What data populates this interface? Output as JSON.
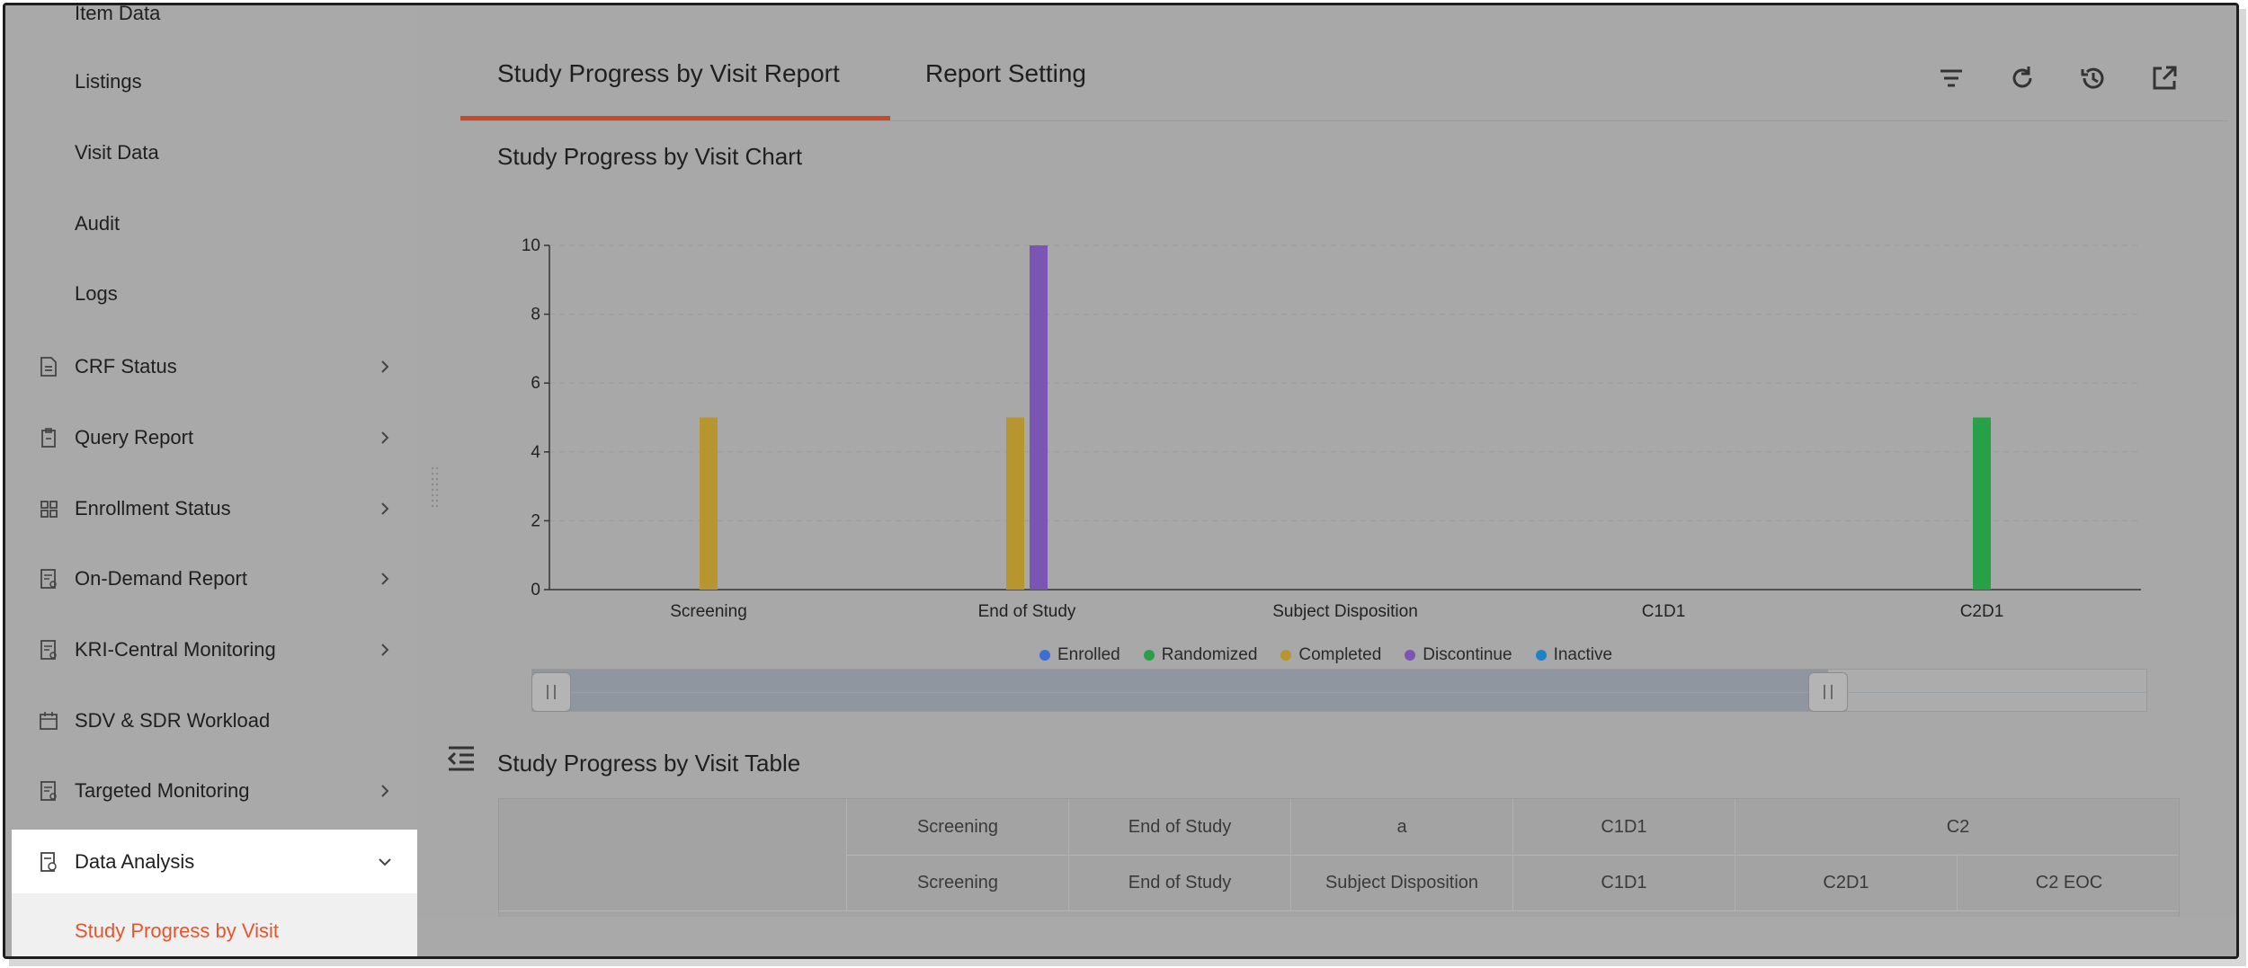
{
  "sidebar": {
    "partial_top": "Item Data",
    "sub_items": [
      "Listings",
      "Visit Data",
      "Audit",
      "Logs"
    ],
    "items": [
      {
        "label": "CRF Status",
        "icon": "document-icon"
      },
      {
        "label": "Query Report",
        "icon": "clipboard-icon"
      },
      {
        "label": "Enrollment Status",
        "icon": "grid-icon"
      },
      {
        "label": "On-Demand Report",
        "icon": "report-icon"
      },
      {
        "label": "KRI-Central Monitoring",
        "icon": "report-icon"
      },
      {
        "label": "SDV & SDR Workload",
        "icon": "calendar-icon"
      },
      {
        "label": "Targeted Monitoring",
        "icon": "report-icon"
      },
      {
        "label": "Data Analysis",
        "icon": "analysis-icon",
        "expanded": true
      }
    ],
    "selected_child": "Study Progress by Visit"
  },
  "tabs": [
    {
      "label": "Study Progress by Visit Report",
      "active": true
    },
    {
      "label": "Report Setting",
      "active": false
    }
  ],
  "toolbar": {
    "icons": [
      "filter-icon",
      "refresh-icon",
      "history-icon",
      "open-external-icon"
    ]
  },
  "chart_section": {
    "title": "Study Progress by Visit Chart"
  },
  "chart_data": {
    "type": "bar",
    "categories": [
      "Screening",
      "End of Study",
      "Subject Disposition",
      "C1D1",
      "C2D1"
    ],
    "series": [
      {
        "name": "Enrolled",
        "color": "#3b6fd4",
        "values": [
          0,
          0,
          0,
          0,
          0
        ]
      },
      {
        "name": "Randomized",
        "color": "#27a047",
        "values": [
          0,
          0,
          0,
          0,
          5
        ]
      },
      {
        "name": "Completed",
        "color": "#b8962f",
        "values": [
          5,
          5,
          0,
          0,
          0
        ]
      },
      {
        "name": "Discontinue",
        "color": "#7b55b3",
        "values": [
          0,
          10,
          0,
          0,
          0
        ]
      },
      {
        "name": "Inactive",
        "color": "#1e82c8",
        "values": [
          0,
          0,
          0,
          0,
          0
        ]
      }
    ],
    "ylim": [
      0,
      10
    ],
    "yticks": [
      0,
      2,
      4,
      6,
      8,
      10
    ],
    "grid": true,
    "legend": "bottom"
  },
  "table_section": {
    "title": "Study Progress by Visit Table",
    "header_row1": [
      "Screening",
      "End of Study",
      "a",
      "C1D1",
      "C2"
    ],
    "header_row2": [
      "Screening",
      "End of Study",
      "Subject Disposition",
      "C1D1",
      "C2D1",
      "C2 EOC"
    ]
  }
}
